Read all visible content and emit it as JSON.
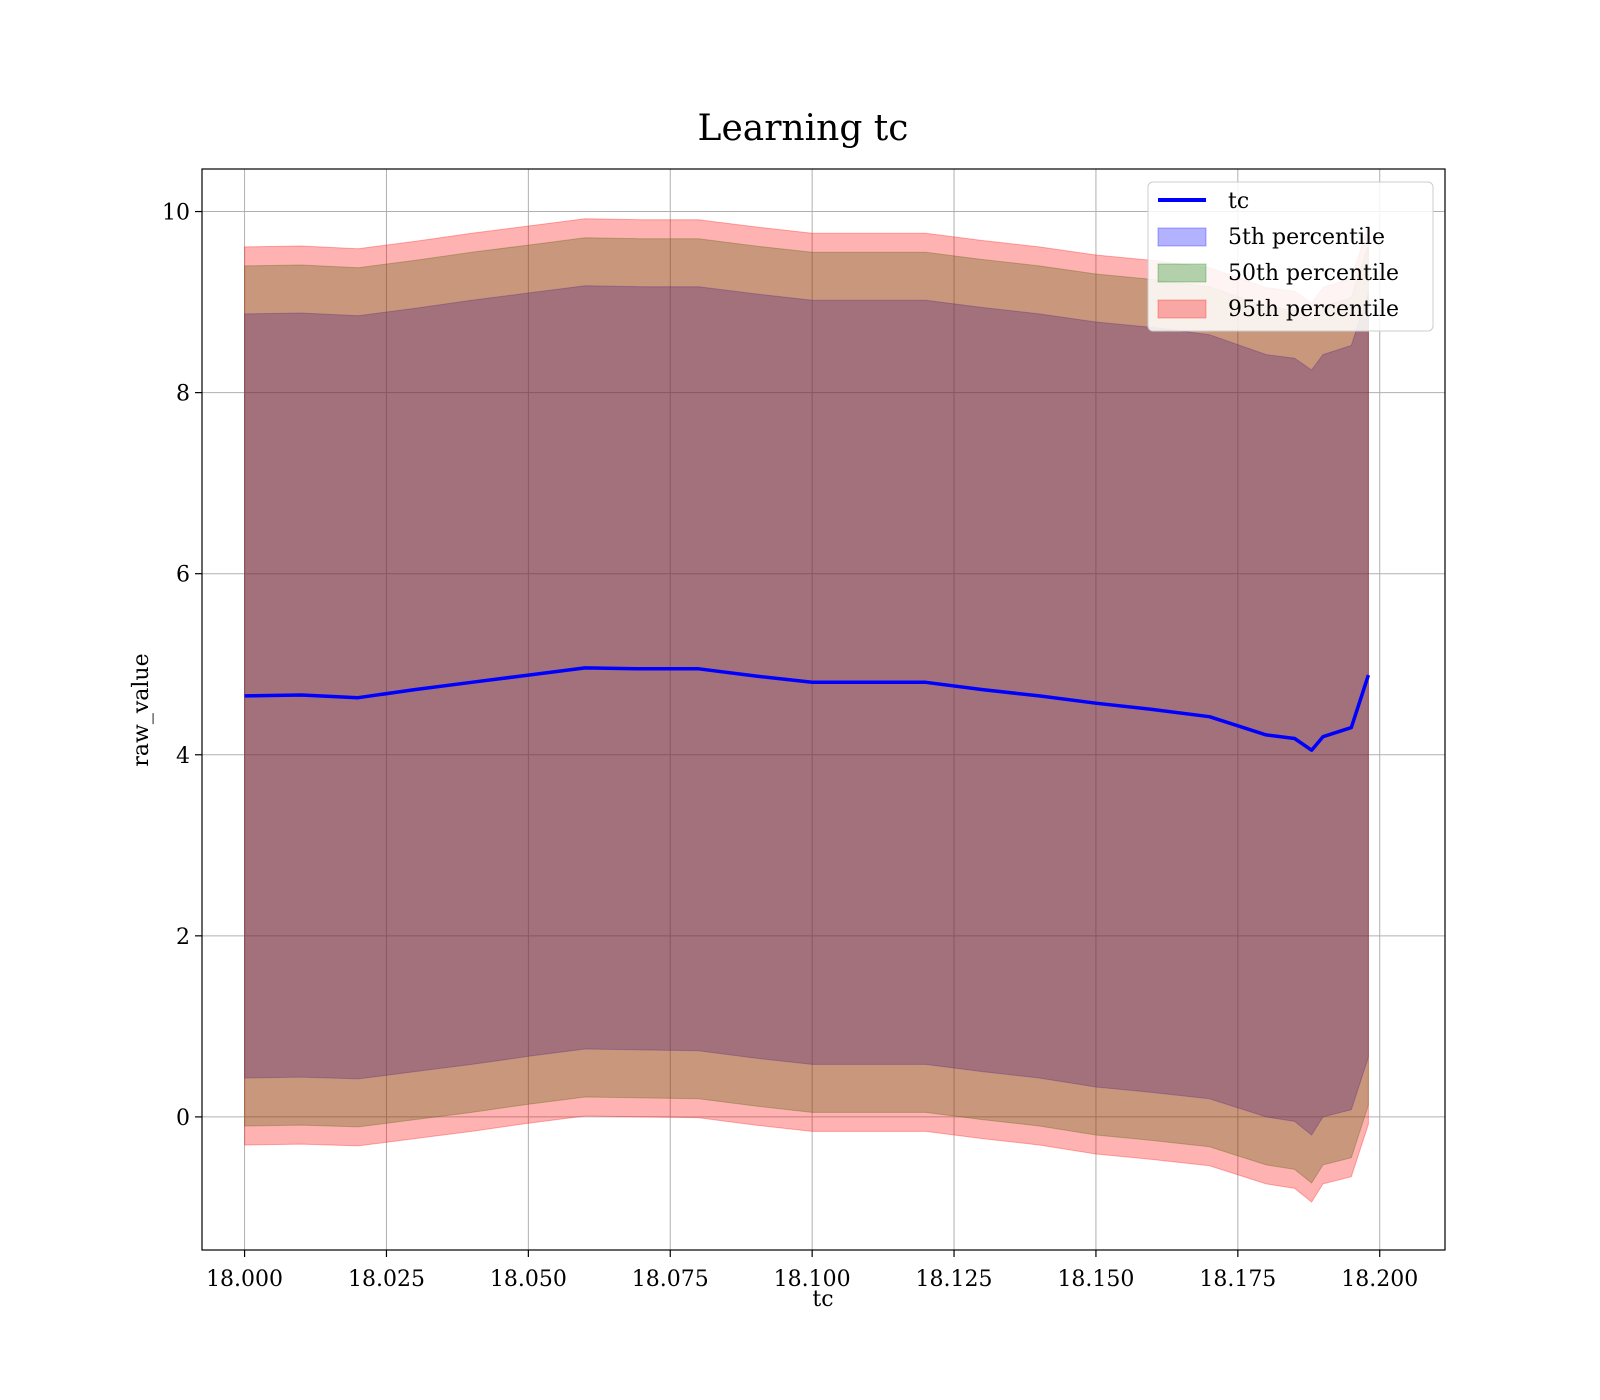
{
  "chart_data": {
    "type": "area",
    "title": "Learning tc",
    "xlabel": "tc",
    "ylabel": "raw_value",
    "xlim": [
      17.9925,
      18.2115
    ],
    "ylim": [
      -1.47,
      10.47
    ],
    "xticks": [
      18.0,
      18.025,
      18.05,
      18.075,
      18.1,
      18.125,
      18.15,
      18.175,
      18.2
    ],
    "xtick_labels": [
      "18.000",
      "18.025",
      "18.050",
      "18.075",
      "18.100",
      "18.125",
      "18.150",
      "18.175",
      "18.200"
    ],
    "yticks": [
      0,
      2,
      4,
      6,
      8,
      10
    ],
    "ytick_labels": [
      "0",
      "2",
      "4",
      "6",
      "8",
      "10"
    ],
    "grid": true,
    "legend_position": "top-right",
    "x": [
      18.0,
      18.01,
      18.02,
      18.03,
      18.04,
      18.05,
      18.06,
      18.07,
      18.08,
      18.09,
      18.1,
      18.11,
      18.12,
      18.13,
      18.14,
      18.15,
      18.16,
      18.17,
      18.18,
      18.185,
      18.188,
      18.19,
      18.195,
      18.198
    ],
    "series": [
      {
        "name": "tc",
        "kind": "line",
        "color": "#0000ff",
        "values": [
          4.65,
          4.66,
          4.63,
          4.72,
          4.8,
          4.88,
          4.96,
          4.95,
          4.95,
          4.87,
          4.8,
          4.8,
          4.8,
          4.72,
          4.65,
          4.57,
          4.5,
          4.42,
          4.22,
          4.18,
          4.05,
          4.2,
          4.3,
          4.88
        ]
      },
      {
        "name": "5th percentile",
        "kind": "band",
        "color": "#0000ff",
        "lower": [
          0.43,
          0.44,
          0.42,
          0.5,
          0.58,
          0.67,
          0.75,
          0.74,
          0.73,
          0.65,
          0.58,
          0.58,
          0.58,
          0.5,
          0.43,
          0.33,
          0.27,
          0.2,
          0.0,
          -0.05,
          -0.2,
          0.0,
          0.08,
          0.66
        ],
        "upper": [
          8.87,
          8.88,
          8.85,
          8.93,
          9.02,
          9.1,
          9.18,
          9.17,
          9.17,
          9.09,
          9.02,
          9.02,
          9.02,
          8.94,
          8.87,
          8.78,
          8.72,
          8.64,
          8.42,
          8.38,
          8.25,
          8.42,
          8.52,
          9.1
        ]
      },
      {
        "name": "50th percentile",
        "kind": "band",
        "color": "#008000",
        "lower": [
          -0.1,
          -0.09,
          -0.11,
          -0.03,
          0.05,
          0.14,
          0.22,
          0.21,
          0.2,
          0.12,
          0.05,
          0.05,
          0.05,
          -0.03,
          -0.1,
          -0.2,
          -0.26,
          -0.33,
          -0.53,
          -0.58,
          -0.73,
          -0.53,
          -0.45,
          0.13
        ],
        "upper": [
          9.4,
          9.41,
          9.38,
          9.46,
          9.55,
          9.63,
          9.71,
          9.7,
          9.7,
          9.62,
          9.55,
          9.55,
          9.55,
          9.47,
          9.4,
          9.31,
          9.25,
          9.17,
          8.95,
          8.91,
          8.78,
          8.95,
          9.05,
          9.63
        ]
      },
      {
        "name": "95th percentile",
        "kind": "band",
        "color": "#ff0000",
        "lower": [
          -0.31,
          -0.3,
          -0.32,
          -0.24,
          -0.16,
          -0.07,
          0.01,
          0.0,
          -0.01,
          -0.09,
          -0.16,
          -0.16,
          -0.16,
          -0.24,
          -0.31,
          -0.41,
          -0.47,
          -0.54,
          -0.74,
          -0.79,
          -0.94,
          -0.74,
          -0.66,
          -0.08
        ],
        "upper": [
          9.61,
          9.62,
          9.59,
          9.67,
          9.76,
          9.84,
          9.92,
          9.91,
          9.91,
          9.83,
          9.76,
          9.76,
          9.76,
          9.68,
          9.61,
          9.52,
          9.46,
          9.38,
          9.16,
          9.12,
          8.99,
          9.16,
          9.26,
          9.84
        ]
      }
    ]
  }
}
